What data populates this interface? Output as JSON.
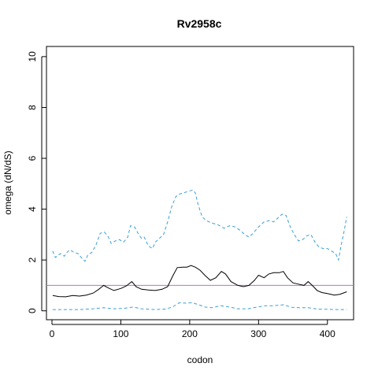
{
  "chart_data": {
    "type": "line",
    "title": "Rv2958c",
    "xlabel": "codon",
    "ylabel": "omega (dN/dS)",
    "xlim": [
      -8,
      438
    ],
    "ylim": [
      -0.35,
      10.4
    ],
    "xticks": [
      0,
      100,
      200,
      300,
      400
    ],
    "yticks": [
      0,
      2,
      4,
      6,
      8,
      10
    ],
    "grid": false,
    "reference_line": {
      "y": 1,
      "color": "#cc66cc"
    },
    "series": [
      {
        "style": "solid",
        "color": "#000000",
        "points": [
          [
            1,
            0.6
          ],
          [
            10,
            0.56
          ],
          [
            20,
            0.55
          ],
          [
            30,
            0.6
          ],
          [
            40,
            0.58
          ],
          [
            50,
            0.62
          ],
          [
            60,
            0.7
          ],
          [
            68,
            0.85
          ],
          [
            75,
            1.0
          ],
          [
            82,
            0.9
          ],
          [
            90,
            0.8
          ],
          [
            100,
            0.88
          ],
          [
            108,
            0.98
          ],
          [
            116,
            1.15
          ],
          [
            122,
            0.95
          ],
          [
            130,
            0.85
          ],
          [
            140,
            0.82
          ],
          [
            150,
            0.8
          ],
          [
            160,
            0.85
          ],
          [
            168,
            0.95
          ],
          [
            175,
            1.35
          ],
          [
            182,
            1.7
          ],
          [
            190,
            1.72
          ],
          [
            196,
            1.72
          ],
          [
            202,
            1.78
          ],
          [
            208,
            1.72
          ],
          [
            215,
            1.6
          ],
          [
            222,
            1.4
          ],
          [
            230,
            1.2
          ],
          [
            238,
            1.3
          ],
          [
            246,
            1.55
          ],
          [
            252,
            1.45
          ],
          [
            260,
            1.15
          ],
          [
            270,
            1.0
          ],
          [
            278,
            0.95
          ],
          [
            286,
            1.0
          ],
          [
            294,
            1.2
          ],
          [
            300,
            1.4
          ],
          [
            308,
            1.3
          ],
          [
            315,
            1.45
          ],
          [
            322,
            1.5
          ],
          [
            330,
            1.5
          ],
          [
            336,
            1.55
          ],
          [
            342,
            1.3
          ],
          [
            350,
            1.1
          ],
          [
            358,
            1.05
          ],
          [
            366,
            1.0
          ],
          [
            372,
            1.15
          ],
          [
            378,
            1.0
          ],
          [
            385,
            0.8
          ],
          [
            392,
            0.72
          ],
          [
            400,
            0.68
          ],
          [
            410,
            0.62
          ],
          [
            418,
            0.65
          ],
          [
            425,
            0.72
          ],
          [
            428,
            0.75
          ]
        ]
      },
      {
        "style": "dashed",
        "color": "#3a9fd8",
        "points": [
          [
            1,
            2.35
          ],
          [
            5,
            2.1
          ],
          [
            12,
            2.25
          ],
          [
            18,
            2.15
          ],
          [
            22,
            2.3
          ],
          [
            26,
            2.4
          ],
          [
            32,
            2.3
          ],
          [
            38,
            2.25
          ],
          [
            44,
            2.05
          ],
          [
            48,
            1.95
          ],
          [
            52,
            2.2
          ],
          [
            58,
            2.3
          ],
          [
            64,
            2.6
          ],
          [
            70,
            3.05
          ],
          [
            76,
            3.1
          ],
          [
            82,
            2.9
          ],
          [
            86,
            2.65
          ],
          [
            92,
            2.75
          ],
          [
            98,
            2.8
          ],
          [
            104,
            2.7
          ],
          [
            110,
            2.9
          ],
          [
            114,
            3.35
          ],
          [
            120,
            3.3
          ],
          [
            126,
            3.0
          ],
          [
            130,
            2.85
          ],
          [
            134,
            2.9
          ],
          [
            140,
            2.55
          ],
          [
            146,
            2.45
          ],
          [
            150,
            2.7
          ],
          [
            156,
            2.85
          ],
          [
            162,
            3.0
          ],
          [
            168,
            3.5
          ],
          [
            174,
            4.1
          ],
          [
            180,
            4.5
          ],
          [
            186,
            4.6
          ],
          [
            192,
            4.65
          ],
          [
            198,
            4.7
          ],
          [
            204,
            4.75
          ],
          [
            208,
            4.65
          ],
          [
            212,
            4.2
          ],
          [
            218,
            3.7
          ],
          [
            224,
            3.55
          ],
          [
            232,
            3.45
          ],
          [
            240,
            3.4
          ],
          [
            250,
            3.25
          ],
          [
            258,
            3.35
          ],
          [
            266,
            3.3
          ],
          [
            274,
            3.15
          ],
          [
            280,
            3.0
          ],
          [
            286,
            2.9
          ],
          [
            292,
            3.05
          ],
          [
            300,
            3.3
          ],
          [
            308,
            3.5
          ],
          [
            316,
            3.55
          ],
          [
            322,
            3.5
          ],
          [
            328,
            3.65
          ],
          [
            334,
            3.8
          ],
          [
            340,
            3.75
          ],
          [
            346,
            3.3
          ],
          [
            352,
            3.0
          ],
          [
            358,
            2.75
          ],
          [
            364,
            2.8
          ],
          [
            370,
            2.95
          ],
          [
            376,
            3.0
          ],
          [
            382,
            2.7
          ],
          [
            388,
            2.5
          ],
          [
            394,
            2.45
          ],
          [
            400,
            2.45
          ],
          [
            406,
            2.35
          ],
          [
            412,
            2.25
          ],
          [
            416,
            2.0
          ],
          [
            420,
            2.6
          ],
          [
            424,
            3.1
          ],
          [
            428,
            3.7
          ]
        ]
      },
      {
        "style": "dashed",
        "color": "#3a9fd8",
        "points": [
          [
            1,
            0.05
          ],
          [
            20,
            0.05
          ],
          [
            40,
            0.05
          ],
          [
            60,
            0.08
          ],
          [
            75,
            0.12
          ],
          [
            90,
            0.08
          ],
          [
            105,
            0.1
          ],
          [
            118,
            0.15
          ],
          [
            130,
            0.08
          ],
          [
            150,
            0.05
          ],
          [
            165,
            0.07
          ],
          [
            175,
            0.15
          ],
          [
            185,
            0.32
          ],
          [
            195,
            0.3
          ],
          [
            203,
            0.32
          ],
          [
            212,
            0.25
          ],
          [
            222,
            0.15
          ],
          [
            232,
            0.12
          ],
          [
            245,
            0.2
          ],
          [
            258,
            0.15
          ],
          [
            270,
            0.08
          ],
          [
            285,
            0.08
          ],
          [
            298,
            0.15
          ],
          [
            310,
            0.2
          ],
          [
            322,
            0.2
          ],
          [
            336,
            0.24
          ],
          [
            348,
            0.14
          ],
          [
            360,
            0.12
          ],
          [
            372,
            0.12
          ],
          [
            385,
            0.07
          ],
          [
            400,
            0.06
          ],
          [
            415,
            0.05
          ],
          [
            428,
            0.05
          ]
        ]
      }
    ]
  }
}
